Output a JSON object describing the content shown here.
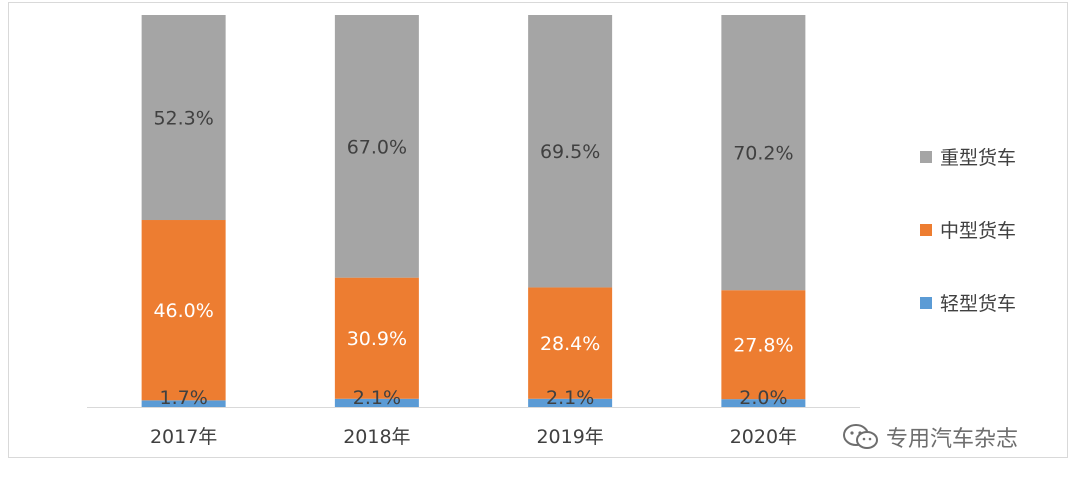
{
  "chart_data": {
    "type": "bar",
    "stacked": true,
    "categories": [
      "2017年",
      "2018年",
      "2019年",
      "2020年"
    ],
    "series": [
      {
        "name": "轻型货车",
        "color": "#5b9bd5",
        "values": [
          1.7,
          2.1,
          2.1,
          2.0
        ],
        "labels": [
          "1.7%",
          "2.1%",
          "2.1%",
          "2.0%"
        ]
      },
      {
        "name": "中型货车",
        "color": "#ed7d31",
        "values": [
          46.0,
          30.9,
          28.4,
          27.8
        ],
        "labels": [
          "46.0%",
          "30.9%",
          "28.4%",
          "27.8%"
        ]
      },
      {
        "name": "重型货车",
        "color": "#a5a5a5",
        "values": [
          52.3,
          67.0,
          69.5,
          70.2
        ],
        "labels": [
          "52.3%",
          "67.0%",
          "69.5%",
          "70.2%"
        ]
      }
    ],
    "legend_order": [
      "重型货车",
      "中型货车",
      "轻型货车"
    ],
    "ylim": [
      0,
      100
    ],
    "title": "",
    "xlabel": "",
    "ylabel": "",
    "grid": false,
    "legend_position": "right",
    "label_colors": {
      "轻型货车": "#404040",
      "中型货车": "#ffffff",
      "重型货车": "#404040"
    }
  },
  "watermark": {
    "text": "专用汽车杂志",
    "icon": "wechat-icon"
  }
}
